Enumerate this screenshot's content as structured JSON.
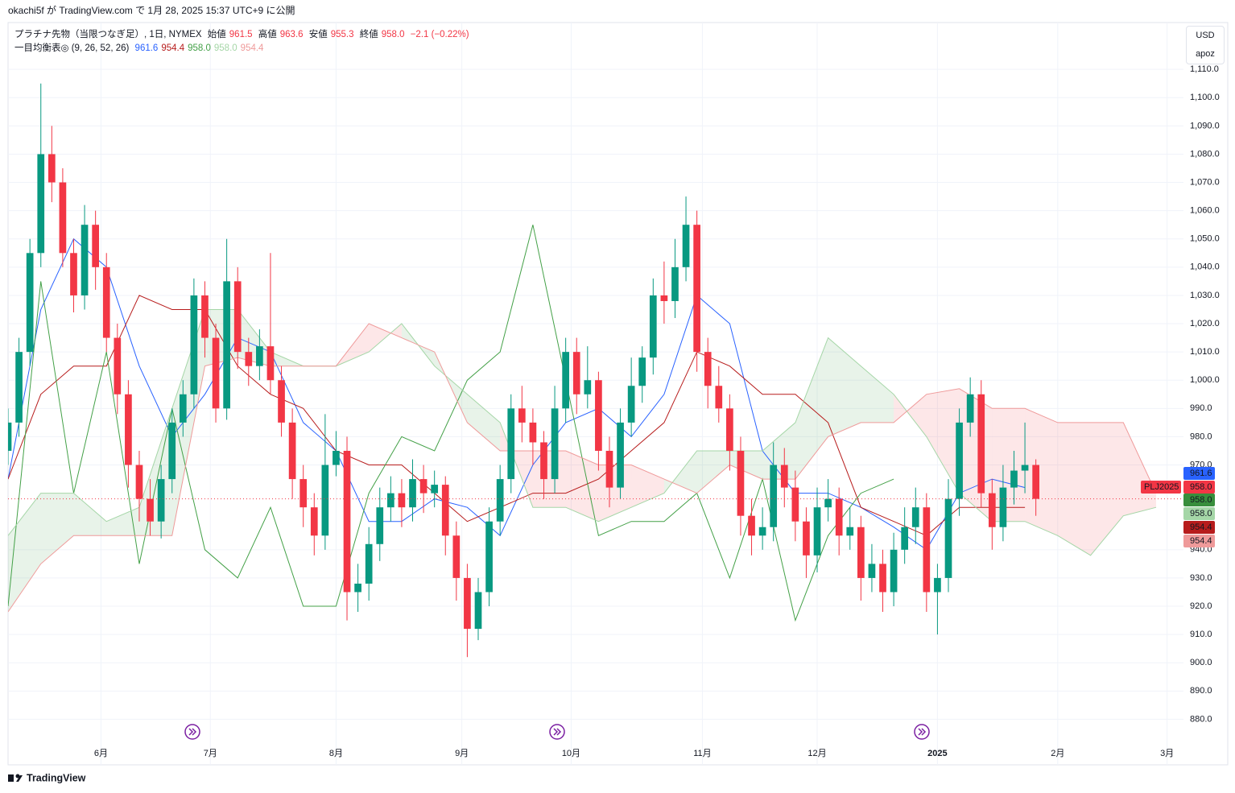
{
  "header": {
    "caption": "okachi5f が TradingView.com で 1月 28, 2025 15:37 UTC+9 に公開"
  },
  "legend": {
    "symbol": "プラチナ先物（当限つなぎ足）, 1日, NYMEX",
    "open_label": "始値",
    "open": "961.5",
    "high_label": "高値",
    "high": "963.6",
    "low_label": "安値",
    "low": "955.3",
    "close_label": "終値",
    "close": "958.0",
    "change": "−2.1 (−0.22%)",
    "indicator": "一目均衡表◎ (9, 26, 52, 26)",
    "indicator_values": [
      {
        "text": "961.6",
        "color": "#2962ff"
      },
      {
        "text": "954.4",
        "color": "#b71c1c"
      },
      {
        "text": "958.0",
        "color": "#43a047"
      },
      {
        "text": "958.0",
        "color": "#a5d6a7"
      },
      {
        "text": "954.4",
        "color": "#ef9a9a"
      }
    ]
  },
  "currency": "USD",
  "account": "apoz",
  "footer": "TradingView",
  "price_labels": [
    {
      "text": "961.6",
      "color": "#2962ff"
    },
    {
      "text": "958.0",
      "color": "#f23645"
    },
    {
      "text": "958.0",
      "color": "#388e3c"
    },
    {
      "text": "958.0",
      "color": "#a5d6a7"
    },
    {
      "text": "954.4",
      "color": "#b71c1c"
    },
    {
      "text": "954.4",
      "color": "#ef9a9a"
    }
  ],
  "contract_label": "PLJ2025",
  "chart_data": {
    "type": "candlestick",
    "up_color": "#089981",
    "down_color": "#f23645",
    "grid": true,
    "xlim": [
      -17,
      198
    ],
    "ylim": [
      871,
      1126
    ],
    "xticks": [
      {
        "value": 0,
        "label": "6月"
      },
      {
        "value": 20,
        "label": "7月"
      },
      {
        "value": 43,
        "label": "8月"
      },
      {
        "value": 66,
        "label": "9月"
      },
      {
        "value": 86,
        "label": "10月"
      },
      {
        "value": 110,
        "label": "11月"
      },
      {
        "value": 131,
        "label": "12月"
      },
      {
        "value": 153,
        "label": "2025"
      },
      {
        "value": 175,
        "label": "2月"
      },
      {
        "value": 195,
        "label": "3月"
      }
    ],
    "yticks": [
      {
        "value": 880,
        "label": "880.0"
      },
      {
        "value": 890,
        "label": "890.0"
      },
      {
        "value": 900,
        "label": "900.0"
      },
      {
        "value": 910,
        "label": "910.0"
      },
      {
        "value": 920,
        "label": "920.0"
      },
      {
        "value": 930,
        "label": "930.0"
      },
      {
        "value": 940,
        "label": "940.0"
      },
      {
        "value": 970,
        "label": "970.0"
      },
      {
        "value": 980,
        "label": "980.0"
      },
      {
        "value": 990,
        "label": "990.0"
      },
      {
        "value": 1000,
        "label": "1,000.0"
      },
      {
        "value": 1010,
        "label": "1,010.0"
      },
      {
        "value": 1020,
        "label": "1,020.0"
      },
      {
        "value": 1030,
        "label": "1,030.0"
      },
      {
        "value": 1040,
        "label": "1,040.0"
      },
      {
        "value": 1050,
        "label": "1,050.0"
      },
      {
        "value": 1060,
        "label": "1,060.0"
      },
      {
        "value": 1070,
        "label": "1,070.0"
      },
      {
        "value": 1080,
        "label": "1,080.0"
      },
      {
        "value": 1090,
        "label": "1,090.0"
      },
      {
        "value": 1100,
        "label": "1,100.0"
      },
      {
        "value": 1110,
        "label": "1,110.0"
      }
    ],
    "x": [
      -17,
      -15,
      -13,
      -11,
      -9,
      -7,
      -5,
      -3,
      -1,
      1,
      3,
      5,
      7,
      9,
      11,
      13,
      15,
      17,
      19,
      21,
      23,
      25,
      27,
      29,
      31,
      33,
      35,
      37,
      39,
      41,
      43,
      45,
      47,
      49,
      51,
      53,
      55,
      57,
      59,
      61,
      63,
      65,
      67,
      69,
      71,
      73,
      75,
      77,
      79,
      81,
      83,
      85,
      87,
      89,
      91,
      93,
      95,
      97,
      99,
      101,
      103,
      105,
      107,
      109,
      111,
      113,
      115,
      117,
      119,
      121,
      123,
      125,
      127,
      129,
      131,
      133,
      135,
      137,
      139,
      141,
      143,
      145,
      147,
      149,
      151,
      153,
      155,
      157,
      159,
      161,
      163,
      165,
      167,
      169,
      171
    ],
    "open": [
      975,
      985,
      1010,
      1045,
      1080,
      1070,
      1045,
      1030,
      1055,
      1040,
      1015,
      995,
      970,
      958,
      950,
      965,
      985,
      995,
      1030,
      1015,
      990,
      1035,
      1010,
      1005,
      1012,
      1000,
      985,
      965,
      955,
      945,
      970,
      975,
      925,
      928,
      942,
      955,
      960,
      955,
      965,
      960,
      963,
      945,
      930,
      912,
      925,
      950,
      965,
      990,
      985,
      978,
      965,
      990,
      1010,
      995,
      1000,
      975,
      962,
      985,
      998,
      1008,
      1030,
      1028,
      1040,
      1055,
      1010,
      998,
      990,
      975,
      952,
      945,
      948,
      970,
      962,
      950,
      938,
      955,
      958,
      945,
      948,
      930,
      935,
      925,
      940,
      948,
      955,
      925,
      930,
      958,
      985,
      995,
      960,
      948,
      962,
      968,
      970
    ],
    "high": [
      990,
      1015,
      1050,
      1105,
      1090,
      1075,
      1050,
      1062,
      1060,
      1045,
      1020,
      1000,
      975,
      965,
      970,
      990,
      1000,
      1036,
      1035,
      1020,
      1050,
      1040,
      1015,
      1018,
      1045,
      1005,
      990,
      970,
      960,
      988,
      982,
      980,
      935,
      948,
      962,
      966,
      965,
      972,
      970,
      968,
      966,
      950,
      935,
      930,
      955,
      970,
      995,
      998,
      990,
      982,
      998,
      1015,
      1015,
      1012,
      1003,
      980,
      990,
      1008,
      1012,
      1036,
      1042,
      1050,
      1065,
      1060,
      1015,
      1005,
      995,
      980,
      958,
      955,
      978,
      976,
      968,
      955,
      962,
      965,
      962,
      955,
      952,
      942,
      940,
      946,
      955,
      962,
      960,
      935,
      965,
      990,
      1001,
      1000,
      965,
      970,
      975,
      985,
      972
    ],
    "low": [
      970,
      980,
      1005,
      1040,
      1063,
      1040,
      1024,
      1025,
      1032,
      1010,
      988,
      962,
      950,
      945,
      944,
      960,
      980,
      990,
      1008,
      985,
      986,
      1004,
      998,
      1000,
      995,
      980,
      958,
      948,
      938,
      940,
      966,
      915,
      918,
      922,
      936,
      950,
      948,
      950,
      953,
      955,
      938,
      922,
      902,
      908,
      920,
      945,
      960,
      978,
      970,
      958,
      960,
      985,
      988,
      990,
      968,
      955,
      958,
      980,
      992,
      1002,
      1020,
      1022,
      1035,
      1003,
      990,
      985,
      968,
      945,
      938,
      940,
      943,
      955,
      943,
      930,
      932,
      950,
      938,
      940,
      922,
      925,
      918,
      920,
      935,
      942,
      918,
      910,
      925,
      952,
      980,
      955,
      940,
      943,
      956,
      960,
      952
    ],
    "close": [
      985,
      1010,
      1045,
      1080,
      1070,
      1045,
      1030,
      1055,
      1040,
      1015,
      995,
      970,
      958,
      950,
      965,
      985,
      995,
      1030,
      1015,
      990,
      1035,
      1010,
      1005,
      1012,
      1000,
      985,
      965,
      955,
      945,
      970,
      975,
      925,
      928,
      942,
      955,
      960,
      955,
      965,
      960,
      963,
      945,
      930,
      912,
      925,
      950,
      965,
      990,
      985,
      978,
      965,
      990,
      1010,
      995,
      1000,
      975,
      962,
      985,
      998,
      1008,
      1030,
      1028,
      1040,
      1055,
      1010,
      998,
      990,
      975,
      952,
      945,
      948,
      970,
      962,
      950,
      938,
      955,
      958,
      945,
      948,
      930,
      935,
      925,
      940,
      948,
      955,
      925,
      930,
      958,
      985,
      995,
      960,
      948,
      962,
      968,
      970,
      958
    ],
    "last_line_color": "#f23645",
    "ichimoku": {
      "cloud_colors": [
        "rgba(67,160,71,0.12)",
        "rgba(242,54,69,0.12)"
      ],
      "x": [
        -17,
        -11,
        -5,
        1,
        7,
        13,
        19,
        25,
        31,
        37,
        43,
        49,
        55,
        61,
        67,
        73,
        79,
        85,
        91,
        97,
        103,
        109,
        115,
        121,
        127,
        133,
        139,
        145,
        151,
        157,
        163,
        169,
        175,
        181,
        187,
        193
      ],
      "series": [
        {
          "color": "#2962ff",
          "values": [
            965,
            1025,
            1050,
            1040,
            1005,
            980,
            995,
            1015,
            1010,
            985,
            975,
            950,
            950,
            958,
            955,
            945,
            970,
            985,
            990,
            980,
            995,
            1030,
            1020,
            975,
            960,
            960,
            955,
            948,
            940,
            960,
            965,
            962,
            null,
            null,
            null,
            null
          ]
        },
        {
          "color": "#b71c1c",
          "values": [
            965,
            995,
            1005,
            1005,
            1030,
            1025,
            1025,
            1005,
            995,
            990,
            975,
            970,
            970,
            960,
            950,
            955,
            960,
            960,
            965,
            975,
            985,
            1010,
            1005,
            995,
            995,
            985,
            955,
            950,
            945,
            955,
            955,
            955,
            null,
            null,
            null,
            null
          ]
        },
        {
          "color": "#43a047",
          "values": [
            920,
            1035,
            960,
            1010,
            935,
            990,
            940,
            930,
            955,
            920,
            920,
            960,
            980,
            975,
            1000,
            1010,
            1055,
            1000,
            945,
            950,
            950,
            960,
            930,
            965,
            915,
            945,
            960,
            965,
            null,
            null,
            null,
            null,
            null,
            null,
            null,
            null
          ]
        },
        {
          "color": "#a5d6a7",
          "values": [
            945,
            960,
            960,
            950,
            955,
            990,
            1025,
            1025,
            1010,
            1005,
            1005,
            1010,
            1020,
            1005,
            995,
            985,
            955,
            955,
            950,
            955,
            960,
            975,
            975,
            975,
            985,
            1015,
            1005,
            995,
            980,
            960,
            950,
            950,
            945,
            938,
            952,
            955
          ]
        },
        {
          "color": "#ef9a9a",
          "values": [
            918,
            935,
            945,
            945,
            945,
            945,
            1005,
            1008,
            1005,
            1005,
            1005,
            1020,
            1015,
            1010,
            985,
            975,
            975,
            975,
            970,
            970,
            965,
            960,
            970,
            965,
            965,
            980,
            985,
            985,
            995,
            997,
            990,
            990,
            985,
            985,
            985,
            960
          ]
        }
      ]
    }
  }
}
